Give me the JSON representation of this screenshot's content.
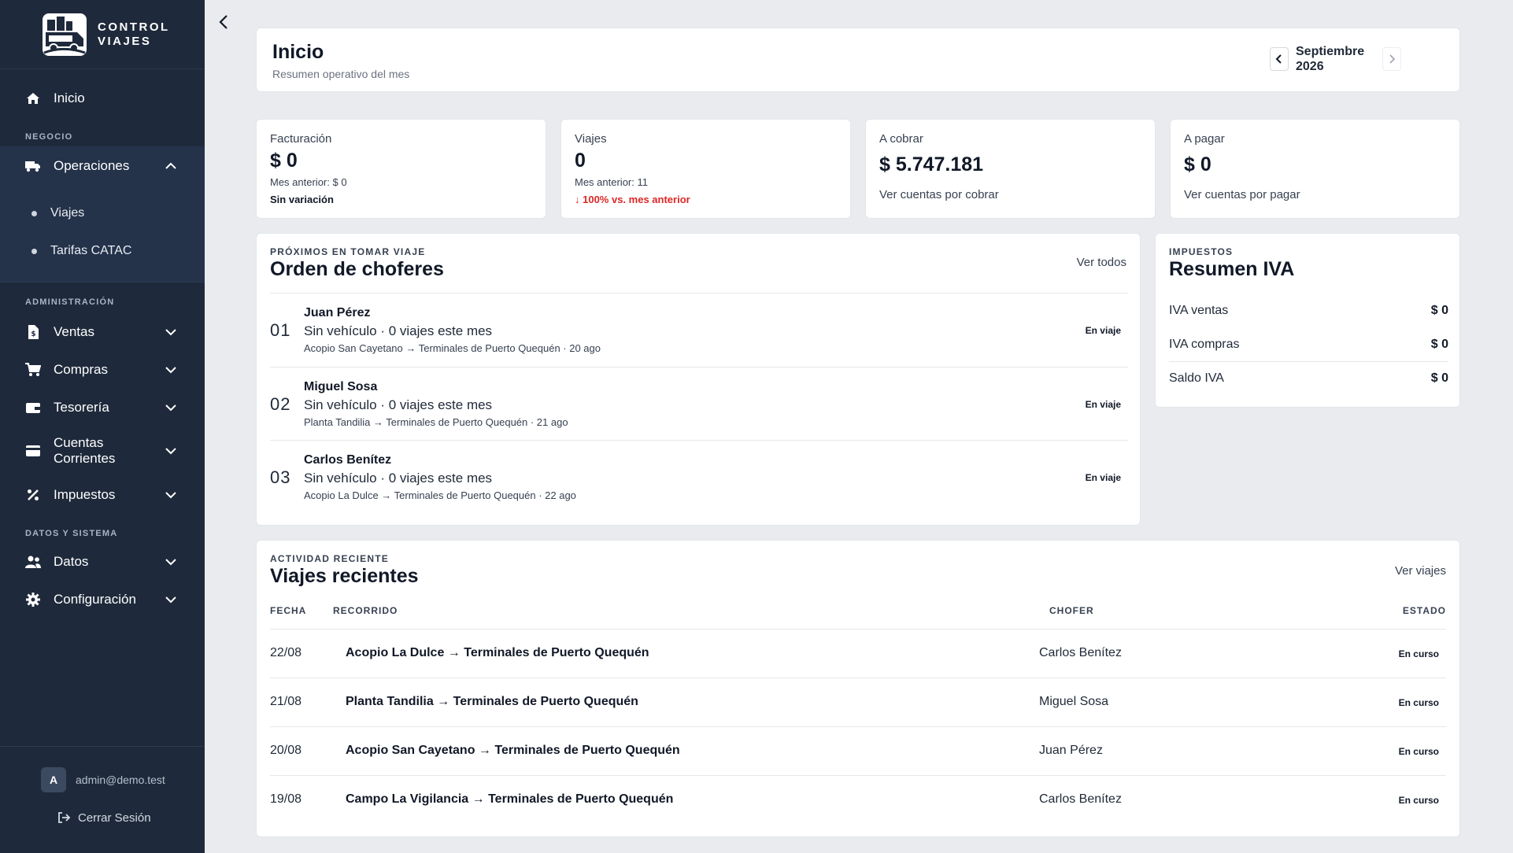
{
  "brand": {
    "line1": "CONTROL",
    "line2": "VIAJES",
    "user_initial": "A",
    "user_email": "admin@demo.test",
    "logout": "Cerrar Sesión"
  },
  "sidebar": {
    "home": "Inicio",
    "sec_negocio": "NEGOCIO",
    "operaciones": "Operaciones",
    "sub_viajes": "Viajes",
    "sub_tarifas": "Tarifas CATAC",
    "sec_admin": "ADMINISTRACIÓN",
    "ventas": "Ventas",
    "compras": "Compras",
    "tesoreria": "Tesorería",
    "cuentas": "Cuentas Corrientes",
    "impuestos": "Impuestos",
    "sec_datos": "DATOS Y SISTEMA",
    "datos": "Datos",
    "config": "Configuración"
  },
  "header": {
    "title": "Inicio",
    "subtitle": "Resumen operativo del mes",
    "month": "Septiembre 2026"
  },
  "kpis": {
    "facturacion": {
      "label": "Facturación",
      "value": "$ 0",
      "prev": "Mes anterior: $ 0",
      "foot": "Sin variación"
    },
    "viajes": {
      "label": "Viajes",
      "value": "0",
      "prev": "Mes anterior: 11",
      "foot": "↓ 100% vs. mes anterior"
    },
    "cobrar": {
      "label": "A cobrar",
      "value": "$ 5.747.181",
      "link": "Ver cuentas por cobrar"
    },
    "pagar": {
      "label": "A pagar",
      "value": "$ 0",
      "link": "Ver cuentas por pagar"
    }
  },
  "drivers": {
    "eyebrow": "PRÓXIMOS EN TOMAR VIAJE",
    "title": "Orden de choferes",
    "link": "Ver todos",
    "rows": [
      {
        "num": "01",
        "name": "Juan Pérez",
        "vehicle": "Sin vehículo · 0 viajes este mes",
        "route": "Acopio San Cayetano → Terminales de Puerto Quequén · 20 ago",
        "status": "En viaje"
      },
      {
        "num": "02",
        "name": "Miguel Sosa",
        "vehicle": "Sin vehículo · 0 viajes este mes",
        "route": "Planta Tandilia → Terminales de Puerto Quequén · 21 ago",
        "status": "En viaje"
      },
      {
        "num": "03",
        "name": "Carlos Benítez",
        "vehicle": "Sin vehículo · 0 viajes este mes",
        "route": "Acopio La Dulce → Terminales de Puerto Quequén · 22 ago",
        "status": "En viaje"
      }
    ]
  },
  "iva": {
    "eyebrow": "IMPUESTOS",
    "title": "Resumen IVA",
    "rows": [
      {
        "label": "IVA ventas",
        "value": "$ 0"
      },
      {
        "label": "IVA compras",
        "value": "$ 0"
      },
      {
        "label": "Saldo IVA",
        "value": "$ 0"
      }
    ]
  },
  "recent": {
    "eyebrow": "ACTIVIDAD RECIENTE",
    "title": "Viajes recientes",
    "link": "Ver viajes",
    "headers": {
      "fecha": "FECHA",
      "recorrido": "RECORRIDO",
      "chofer": "CHOFER",
      "estado": "ESTADO"
    },
    "rows": [
      {
        "fecha": "22/08",
        "recorrido": "Acopio La Dulce → Terminales de Puerto Quequén",
        "chofer": "Carlos Benítez",
        "estado": "En curso"
      },
      {
        "fecha": "21/08",
        "recorrido": "Planta Tandilia → Terminales de Puerto Quequén",
        "chofer": "Miguel Sosa",
        "estado": "En curso"
      },
      {
        "fecha": "20/08",
        "recorrido": "Acopio San Cayetano → Terminales de Puerto Quequén",
        "chofer": "Juan Pérez",
        "estado": "En curso"
      },
      {
        "fecha": "19/08",
        "recorrido": "Campo La Vigilancia → Terminales de Puerto Quequén",
        "chofer": "Carlos Benítez",
        "estado": "En curso"
      }
    ]
  }
}
